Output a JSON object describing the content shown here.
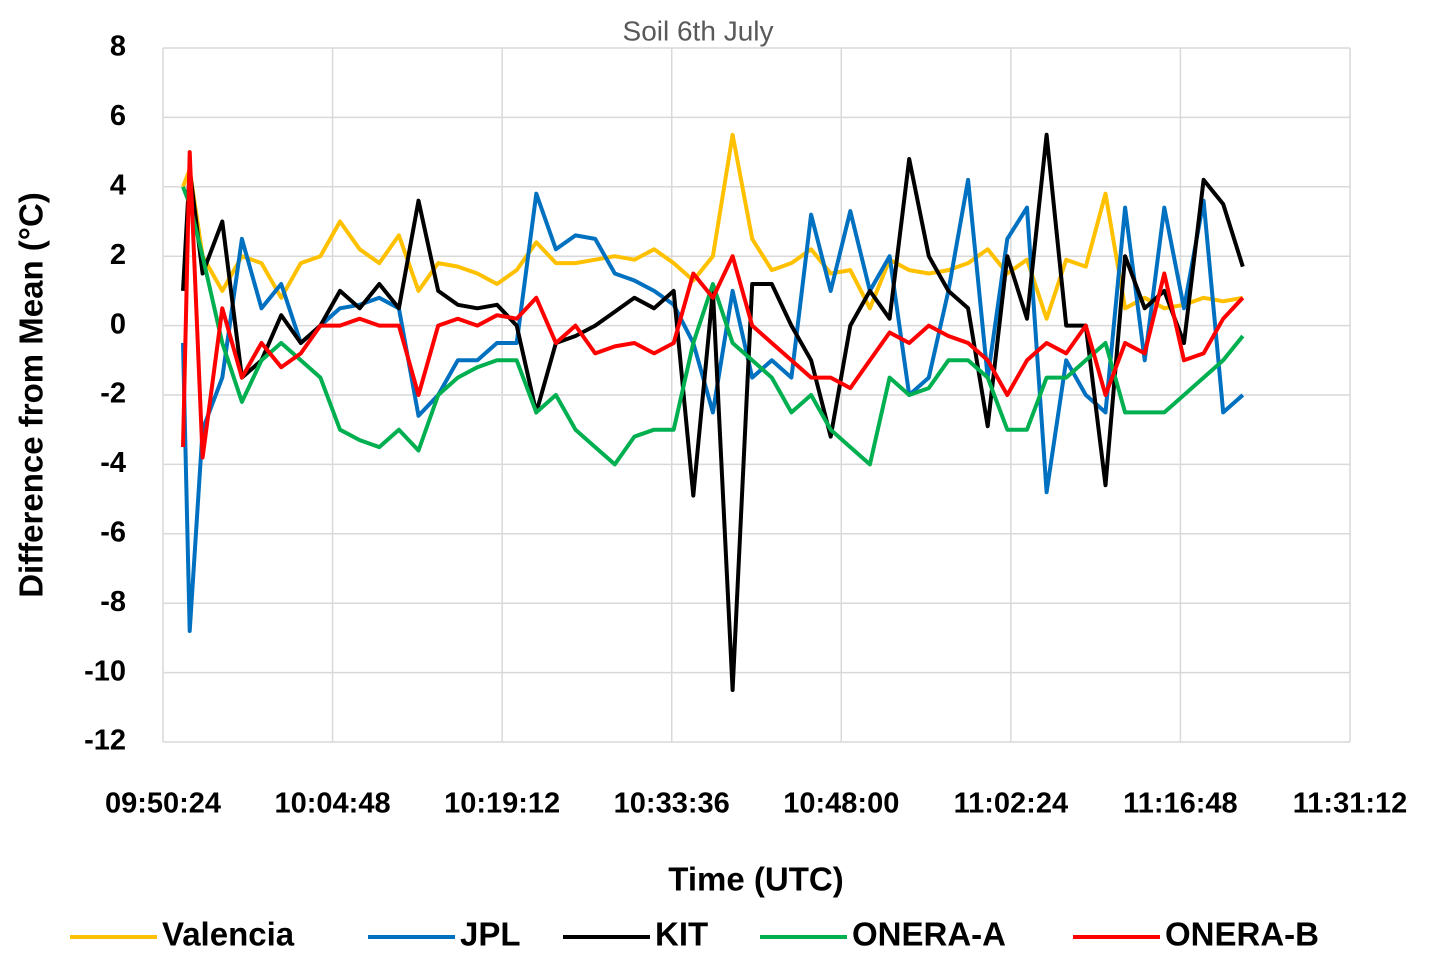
{
  "chart_data": {
    "type": "line",
    "title": "Soil 6th July",
    "x_label": "Time (UTC)",
    "y_label": "Difference from Mean (°C)",
    "x": [
      35526,
      35560,
      35626,
      35726,
      35826,
      35926,
      36026,
      36126,
      36226,
      36326,
      36426,
      36526,
      36626,
      36726,
      36826,
      36926,
      37026,
      37126,
      37226,
      37326,
      37426,
      37526,
      37626,
      37726,
      37826,
      37926,
      38026,
      38126,
      38226,
      38326,
      38426,
      38526,
      38626,
      38726,
      38826,
      38926,
      39026,
      39126,
      39226,
      39326,
      39426,
      39526,
      39626,
      39726,
      39826,
      39926,
      40026,
      40126,
      40226,
      40326,
      40426,
      40526,
      40626,
      40726,
      40826,
      40926
    ],
    "series": [
      {
        "name": "Valencia",
        "color": "#ffc000",
        "values": [
          4.0,
          4.5,
          2.0,
          1.0,
          2.0,
          1.8,
          0.8,
          1.8,
          2.0,
          3.0,
          2.2,
          1.8,
          2.6,
          1.0,
          1.8,
          1.7,
          1.5,
          1.2,
          1.6,
          2.4,
          1.8,
          1.8,
          1.9,
          2.0,
          1.9,
          2.2,
          1.8,
          1.3,
          2.0,
          5.5,
          2.5,
          1.6,
          1.8,
          2.2,
          1.5,
          1.6,
          0.5,
          1.9,
          1.6,
          1.5,
          1.6,
          1.8,
          2.2,
          1.5,
          1.9,
          0.2,
          1.9,
          1.7,
          3.8,
          0.5,
          0.8,
          0.5,
          0.6,
          0.8,
          0.7,
          0.8
        ]
      },
      {
        "name": "JPL",
        "color": "#0070c0",
        "values": [
          -0.5,
          -8.8,
          -3.0,
          -1.5,
          2.5,
          0.5,
          1.2,
          -0.5,
          0.0,
          0.5,
          0.6,
          0.8,
          0.5,
          -2.6,
          -2.0,
          -1.0,
          -1.0,
          -0.5,
          -0.5,
          3.8,
          2.2,
          2.6,
          2.5,
          1.5,
          1.3,
          1.0,
          0.6,
          -0.5,
          -2.5,
          1.0,
          -1.5,
          -1.0,
          -1.5,
          3.2,
          1.0,
          3.3,
          1.0,
          2.0,
          -2.0,
          -1.5,
          1.0,
          4.2,
          -1.5,
          2.5,
          3.4,
          -4.8,
          -1.0,
          -2.0,
          -2.5,
          3.4,
          -1.0,
          3.4,
          0.5,
          3.6,
          -2.5,
          -2.0
        ]
      },
      {
        "name": "KIT",
        "color": "#000000",
        "values": [
          1.0,
          4.5,
          1.5,
          3.0,
          -1.5,
          -1.0,
          0.3,
          -0.5,
          0.0,
          1.0,
          0.5,
          1.2,
          0.5,
          3.6,
          1.0,
          0.6,
          0.5,
          0.6,
          0.0,
          -2.5,
          -0.5,
          -0.3,
          0.0,
          0.4,
          0.8,
          0.5,
          1.0,
          -4.9,
          1.0,
          -10.5,
          1.2,
          1.2,
          0.0,
          -1.0,
          -3.2,
          0.0,
          1.0,
          0.2,
          4.8,
          2.0,
          1.0,
          0.5,
          -2.9,
          2.0,
          0.2,
          5.5,
          0.0,
          0.0,
          -4.6,
          2.0,
          0.5,
          1.0,
          -0.5,
          4.2,
          3.5,
          1.7
        ]
      },
      {
        "name": "ONERA-A",
        "color": "#00b050",
        "values": [
          4.0,
          3.5,
          2.0,
          -0.5,
          -2.2,
          -1.0,
          -0.5,
          -1.0,
          -1.5,
          -3.0,
          -3.3,
          -3.5,
          -3.0,
          -3.6,
          -2.0,
          -1.5,
          -1.2,
          -1.0,
          -1.0,
          -2.5,
          -2.0,
          -3.0,
          -3.5,
          -4.0,
          -3.2,
          -3.0,
          -3.0,
          -0.5,
          1.2,
          -0.5,
          -1.0,
          -1.5,
          -2.5,
          -2.0,
          -3.0,
          -3.5,
          -4.0,
          -1.5,
          -2.0,
          -1.8,
          -1.0,
          -1.0,
          -1.5,
          -3.0,
          -3.0,
          -1.5,
          -1.5,
          -1.0,
          -0.5,
          -2.5,
          -2.5,
          -2.5,
          -2.0,
          -1.5,
          -1.0,
          -0.3
        ]
      },
      {
        "name": "ONERA-B",
        "color": "#ff0000",
        "values": [
          -3.5,
          5.0,
          -3.8,
          0.5,
          -1.5,
          -0.5,
          -1.2,
          -0.8,
          0.0,
          0.0,
          0.2,
          0.0,
          0.0,
          -2.0,
          0.0,
          0.2,
          0.0,
          0.3,
          0.2,
          0.8,
          -0.5,
          0.0,
          -0.8,
          -0.6,
          -0.5,
          -0.8,
          -0.5,
          1.5,
          0.8,
          2.0,
          0.0,
          -0.5,
          -1.0,
          -1.5,
          -1.5,
          -1.8,
          -1.0,
          -0.2,
          -0.5,
          0.0,
          -0.3,
          -0.5,
          -1.0,
          -2.0,
          -1.0,
          -0.5,
          -0.8,
          0.0,
          -2.0,
          -0.5,
          -0.8,
          1.5,
          -1.0,
          -0.8,
          0.2,
          0.8
        ]
      }
    ],
    "xlim": [
      35424,
      41472
    ],
    "xticks": [
      {
        "value": 35424,
        "label": "09:50:24"
      },
      {
        "value": 36288,
        "label": "10:04:48"
      },
      {
        "value": 37152,
        "label": "10:19:12"
      },
      {
        "value": 38016,
        "label": "10:33:36"
      },
      {
        "value": 38880,
        "label": "10:48:00"
      },
      {
        "value": 39744,
        "label": "11:02:24"
      },
      {
        "value": 40608,
        "label": "11:16:48"
      },
      {
        "value": 41472,
        "label": "11:31:12"
      }
    ],
    "ylim": [
      -12,
      8
    ],
    "yticks": [
      8,
      6,
      4,
      2,
      0,
      -2,
      -4,
      -6,
      -8,
      -10,
      -12
    ],
    "grid": true,
    "legend": "bottom"
  }
}
